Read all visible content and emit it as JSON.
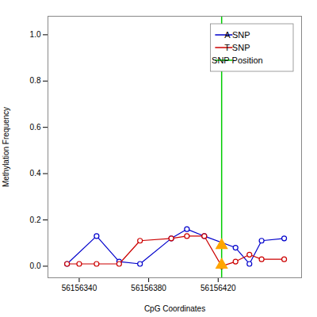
{
  "chart_data": {
    "type": "line",
    "xlabel": "CpG Coordinates",
    "ylabel": "Methylation Frequency",
    "xlim": [
      56156322,
      56156468
    ],
    "ylim": [
      -0.05,
      1.08
    ],
    "xticks": [
      56156340,
      56156380,
      56156420
    ],
    "yticks": [
      {
        "value": 0.0,
        "label": "0.0"
      },
      0.2,
      0.4,
      0.6,
      0.8,
      {
        "value": 1.0,
        "label": "1.0"
      }
    ],
    "series": [
      {
        "name": "A SNP",
        "color": "#0000cc",
        "marker": "circle",
        "line_style": "solid",
        "x": [
          56156333,
          56156350,
          56156363,
          56156375,
          56156393,
          56156402,
          56156412,
          56156430,
          56156438,
          56156445,
          56156458
        ],
        "values": [
          0.01,
          0.13,
          0.02,
          0.01,
          0.12,
          0.16,
          0.13,
          0.08,
          0.01,
          0.11,
          0.12
        ]
      },
      {
        "name": "T SNP",
        "color": "#cc0000",
        "marker": "circle",
        "line_style": "solid",
        "x": [
          56156333,
          56156340,
          56156350,
          56156363,
          56156375,
          56156393,
          56156402,
          56156412,
          56156422,
          56156430,
          56156438,
          56156445,
          56156458
        ],
        "values": [
          0.01,
          0.01,
          0.01,
          0.01,
          0.11,
          0.12,
          0.13,
          0.13,
          0.0,
          0.02,
          0.05,
          0.03,
          0.03
        ]
      }
    ],
    "vline": {
      "name": "SNP Position",
      "x": 56156422,
      "color": "#00cc00"
    },
    "points": {
      "x": [
        56156422,
        56156422
      ],
      "values": [
        0.09,
        0.005
      ],
      "color": "#FFA500",
      "marker": "triangle"
    },
    "legend": "upper right",
    "grid": false
  }
}
